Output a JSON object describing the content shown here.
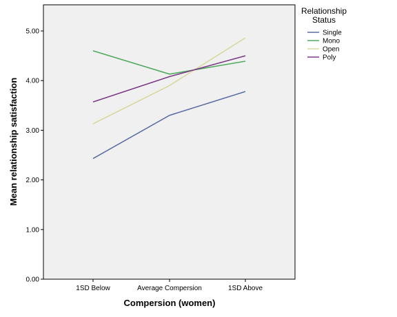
{
  "chart_data": {
    "type": "line",
    "xlabel": "Compersion (women)",
    "ylabel": "Mean relationship satisfaction",
    "categories": [
      "1SD Below",
      "Average Compersion",
      "1SD Above"
    ],
    "ylim": [
      0,
      5.5
    ],
    "yticks": [
      "0.00",
      "1.00",
      "2.00",
      "3.00",
      "4.00",
      "5.00"
    ],
    "grid": false,
    "legend": {
      "title_lines": [
        "Relationship",
        "Status"
      ],
      "placement": "right"
    },
    "series": [
      {
        "name": "Single",
        "color": "#5b6ea3",
        "values": [
          2.43,
          3.3,
          3.78
        ]
      },
      {
        "name": "Mono",
        "color": "#4faa5e",
        "values": [
          4.6,
          4.13,
          4.39
        ]
      },
      {
        "name": "Open",
        "color": "#d8d8a0",
        "values": [
          3.13,
          3.9,
          4.86
        ]
      },
      {
        "name": "Poly",
        "color": "#7b3a86",
        "values": [
          3.57,
          4.08,
          4.5
        ]
      }
    ]
  }
}
